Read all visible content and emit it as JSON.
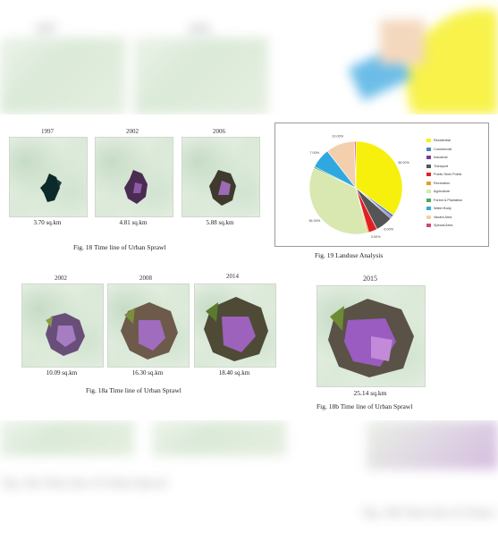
{
  "fig18": {
    "years": [
      "1997",
      "2002",
      "2006"
    ],
    "areas": [
      "3.70 sq.km",
      "4.81 sq.km",
      "5.88 sq.km"
    ],
    "caption": "Fig. 18 Time line of Urban Sprawl"
  },
  "fig18a": {
    "years": [
      "2002",
      "2008",
      "2014"
    ],
    "areas": [
      "10.09 sq.km",
      "16.30 sq.km",
      "18.40 sq.km"
    ],
    "caption": "Fig. 18a Time line of Urban Sprawl"
  },
  "fig18b": {
    "year": "2015",
    "area": "25.14 sq.km",
    "caption": "Fig. 18b Time line of Urban Sprawl"
  },
  "fig19": {
    "caption": "Fig. 19 Landuse Analysis"
  },
  "chart_data": {
    "type": "pie",
    "title": "",
    "categories": [
      "Residential",
      "Commercial",
      "Industrial",
      "Transport",
      "Public Semi Public",
      "Recreation",
      "Agriculture",
      "Forest & Plantation",
      "Water Body",
      "Vacant Area",
      "Special Area"
    ],
    "values": [
      35.0,
      1.0,
      0.5,
      6.0,
      3.0,
      0.5,
      36.0,
      0.5,
      7.0,
      10.0,
      0.5
    ],
    "colors": [
      "#f7ef0c",
      "#4a7fc1",
      "#7b3a96",
      "#555555",
      "#e02020",
      "#e89a2e",
      "#d8e8b0",
      "#4fa65a",
      "#2fa8e0",
      "#f3cfae",
      "#d0467c"
    ],
    "slice_labels": [
      "35.00%",
      "",
      "",
      "6.00%",
      "3.00%",
      "",
      "36.00%",
      "",
      "7.00%",
      "10.00%",
      ""
    ],
    "legend": "right"
  }
}
